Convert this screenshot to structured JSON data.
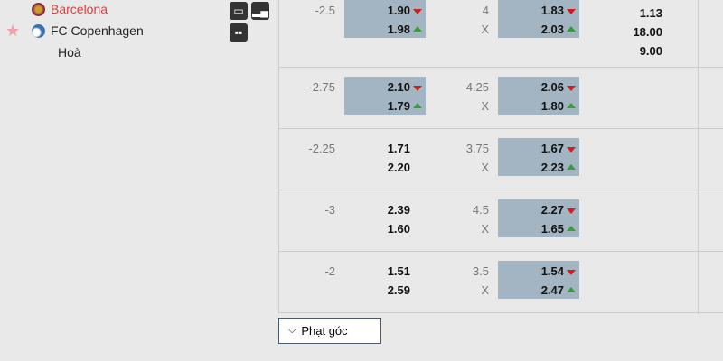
{
  "match": {
    "home": "Barcelona",
    "away": "FC Copenhagen",
    "draw": "Hoà"
  },
  "colors": {
    "home": "#d94040",
    "highlight": "#a3b5c3",
    "down": "#d31d1d",
    "up": "#3a9d3a"
  },
  "icons": [
    "monitor-icon",
    "stats-icon",
    "lineup-icon",
    "star-icon"
  ],
  "rows": [
    {
      "hc": "-2.5",
      "h1": "1.90",
      "h2": "1.98",
      "hc_hl": true,
      "ou": "4",
      "ou_x": "X",
      "o1": "1.83",
      "o2": "2.03",
      "ou_hl": true,
      "x12": [
        "1.13",
        "18.00",
        "9.00"
      ]
    },
    {
      "hc": "-2.75",
      "h1": "2.10",
      "h2": "1.79",
      "hc_hl": true,
      "ou": "4.25",
      "ou_x": "X",
      "o1": "2.06",
      "o2": "1.80",
      "ou_hl": true
    },
    {
      "hc": "-2.25",
      "h1": "1.71",
      "h2": "2.20",
      "hc_hl": false,
      "ou": "3.75",
      "ou_x": "X",
      "o1": "1.67",
      "o2": "2.23",
      "ou_hl": true
    },
    {
      "hc": "-3",
      "h1": "2.39",
      "h2": "1.60",
      "hc_hl": false,
      "ou": "4.5",
      "ou_x": "X",
      "o1": "2.27",
      "o2": "1.65",
      "ou_hl": true
    },
    {
      "hc": "-2",
      "h1": "1.51",
      "h2": "2.59",
      "hc_hl": false,
      "ou": "3.5",
      "ou_x": "X",
      "o1": "1.54",
      "o2": "2.47",
      "ou_hl": true
    }
  ],
  "corner_button": "Phạt góc"
}
